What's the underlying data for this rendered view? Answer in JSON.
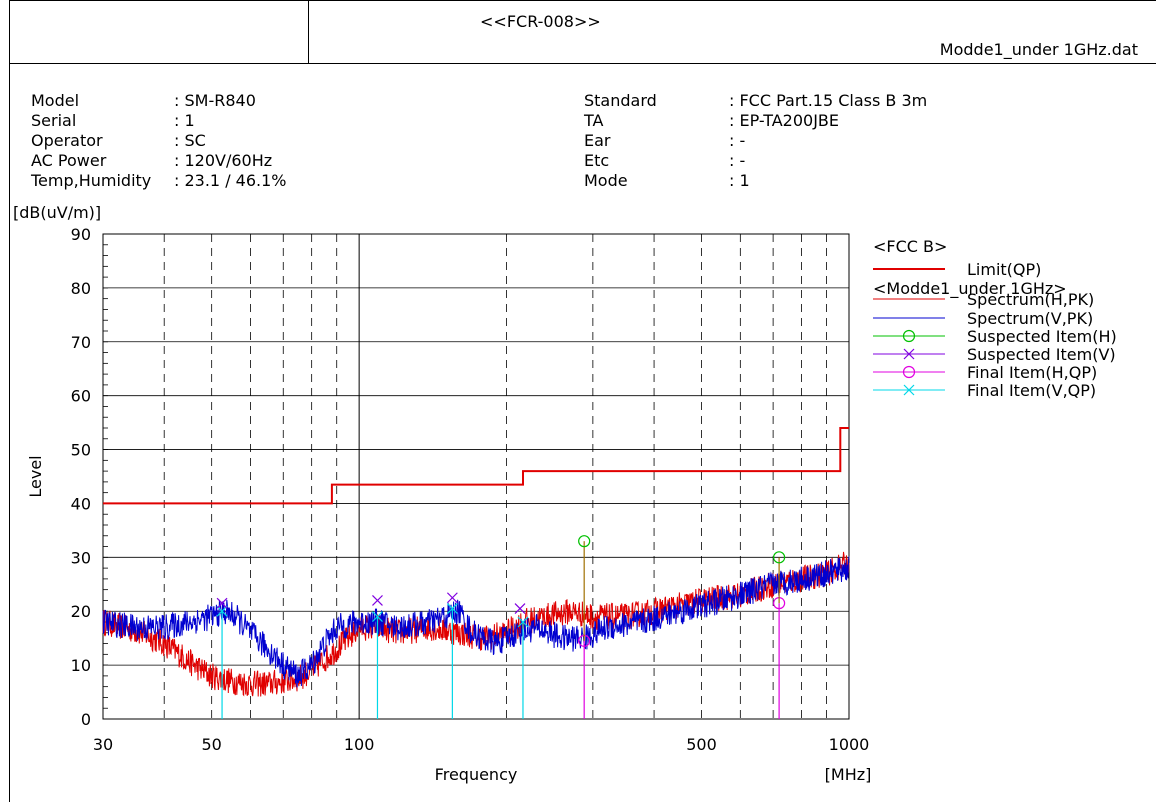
{
  "header": {
    "report_id": "<<FCR-008>>",
    "file_name": "Modde1_under 1GHz.dat"
  },
  "info_left": [
    {
      "key": "Model",
      "value": ": SM-R840"
    },
    {
      "key": "Serial",
      "value": ": 1"
    },
    {
      "key": "Operator",
      "value": ": SC"
    },
    {
      "key": "AC Power",
      "value": ": 120V/60Hz"
    },
    {
      "key": "Temp,Humidity",
      "value": ": 23.1 / 46.1%"
    }
  ],
  "info_right": [
    {
      "key": "Standard",
      "value": ": FCC Part.15 Class B 3m"
    },
    {
      "key": "TA",
      "value": ": EP-TA200JBE"
    },
    {
      "key": "Ear",
      "value": ": -"
    },
    {
      "key": "Etc",
      "value": ": -"
    },
    {
      "key": "Mode",
      "value": ": 1"
    }
  ],
  "chart_data": {
    "type": "line",
    "ylabel_unit": "[dB(uV/m)]",
    "ylabel": "Level",
    "xlabel": "Frequency",
    "xunit": "[MHz]",
    "x_scale": "log",
    "xlim": [
      30,
      1000
    ],
    "ylim": [
      0,
      90
    ],
    "y_ticks": [
      0,
      10,
      20,
      30,
      40,
      50,
      60,
      70,
      80,
      90
    ],
    "x_tick_labels": [
      {
        "value": 30,
        "label": "30"
      },
      {
        "value": 50,
        "label": "50"
      },
      {
        "value": 100,
        "label": "100"
      },
      {
        "value": 500,
        "label": "500"
      },
      {
        "value": 1000,
        "label": "1000"
      }
    ],
    "grid": true,
    "legend_position": "right",
    "legend": {
      "group1": "<FCC B>",
      "group2": "<Modde1_under 1GHz>",
      "items": [
        {
          "label": "Limit(QP)",
          "color": "#e00000",
          "marker": "line"
        },
        {
          "label": "Spectrum(H,PK)",
          "color": "#e00000",
          "marker": "thin"
        },
        {
          "label": "Spectrum(V,PK)",
          "color": "#0000d0",
          "marker": "thin"
        },
        {
          "label": "Suspected Item(H)",
          "color": "#00c000",
          "marker": "circle"
        },
        {
          "label": "Suspected Item(V)",
          "color": "#8000e0",
          "marker": "x"
        },
        {
          "label": "Final Item(H,QP)",
          "color": "#e000e0",
          "marker": "circle"
        },
        {
          "label": "Final Item(V,QP)",
          "color": "#00d8e8",
          "marker": "x"
        }
      ]
    },
    "limit": [
      [
        30,
        40
      ],
      [
        88,
        40
      ],
      [
        88,
        43.5
      ],
      [
        216,
        43.5
      ],
      [
        216,
        46
      ],
      [
        960,
        46
      ],
      [
        960,
        54
      ],
      [
        1000,
        54
      ]
    ],
    "spectrum_h": [
      [
        30,
        18
      ],
      [
        33,
        17
      ],
      [
        36,
        16
      ],
      [
        40,
        14
      ],
      [
        43,
        12
      ],
      [
        46,
        10
      ],
      [
        50,
        8
      ],
      [
        55,
        7
      ],
      [
        60,
        6.5
      ],
      [
        65,
        6.5
      ],
      [
        70,
        7
      ],
      [
        75,
        7.5
      ],
      [
        80,
        9
      ],
      [
        85,
        11
      ],
      [
        90,
        13
      ],
      [
        95,
        15
      ],
      [
        100,
        17
      ],
      [
        110,
        17
      ],
      [
        120,
        16
      ],
      [
        140,
        17
      ],
      [
        160,
        16
      ],
      [
        180,
        15
      ],
      [
        200,
        16
      ],
      [
        216,
        18
      ],
      [
        240,
        19
      ],
      [
        270,
        20
      ],
      [
        300,
        19
      ],
      [
        350,
        19
      ],
      [
        400,
        20
      ],
      [
        450,
        21
      ],
      [
        500,
        22
      ],
      [
        600,
        23
      ],
      [
        700,
        25
      ],
      [
        800,
        26
      ],
      [
        900,
        27
      ],
      [
        1000,
        29
      ]
    ],
    "spectrum_v": [
      [
        30,
        18
      ],
      [
        35,
        17
      ],
      [
        40,
        17
      ],
      [
        45,
        18
      ],
      [
        50,
        19
      ],
      [
        53,
        20
      ],
      [
        56,
        19
      ],
      [
        60,
        16
      ],
      [
        65,
        13
      ],
      [
        70,
        10
      ],
      [
        75,
        8
      ],
      [
        80,
        10
      ],
      [
        85,
        14
      ],
      [
        90,
        17
      ],
      [
        100,
        18
      ],
      [
        110,
        18
      ],
      [
        120,
        17
      ],
      [
        140,
        18
      ],
      [
        160,
        20
      ],
      [
        170,
        16
      ],
      [
        190,
        14
      ],
      [
        210,
        16
      ],
      [
        230,
        17
      ],
      [
        260,
        15
      ],
      [
        290,
        15
      ],
      [
        320,
        17
      ],
      [
        380,
        18
      ],
      [
        450,
        20
      ],
      [
        500,
        21
      ],
      [
        600,
        23
      ],
      [
        700,
        25
      ],
      [
        800,
        26
      ],
      [
        900,
        27
      ],
      [
        1000,
        28
      ]
    ],
    "suspected_h": [
      {
        "x": 288,
        "y": 33
      },
      {
        "x": 720,
        "y": 30
      }
    ],
    "suspected_v": [
      {
        "x": 52.5,
        "y": 21.5
      },
      {
        "x": 109,
        "y": 22
      },
      {
        "x": 155,
        "y": 22.5
      },
      {
        "x": 213,
        "y": 20.5
      }
    ],
    "final_h": [
      {
        "x": 288,
        "y": 14.5
      },
      {
        "x": 720,
        "y": 21.5
      }
    ],
    "final_v": [
      {
        "x": 52.5,
        "y": 20
      },
      {
        "x": 109,
        "y": 19
      },
      {
        "x": 155,
        "y": 20.5
      },
      {
        "x": 216,
        "y": 18
      }
    ]
  }
}
